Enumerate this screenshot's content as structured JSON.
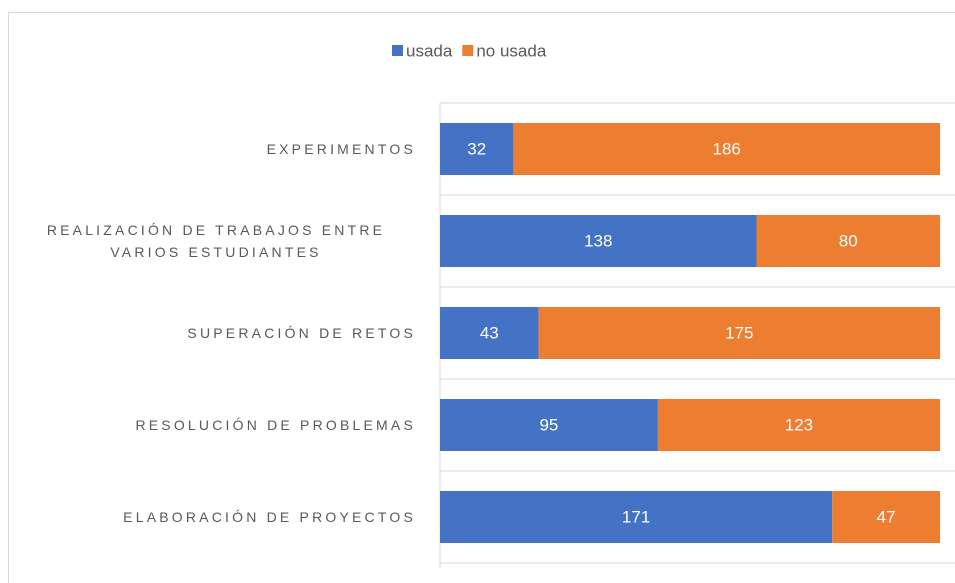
{
  "chart_data": {
    "type": "stacked-bar-horizontal",
    "categories": [
      "EXPERIMENTOS",
      "REALIZACIÓN DE TRABAJOS ENTRE VARIOS ESTUDIANTES",
      "SUPERACIÓN DE RETOS",
      "RESOLUCIÓN DE PROBLEMAS",
      "ELABORACIÓN DE PROYECTOS"
    ],
    "series": [
      {
        "name": "usada",
        "color": "#4472c4",
        "values": [
          32,
          138,
          43,
          95,
          171
        ]
      },
      {
        "name": "no usada",
        "color": "#ed7d31",
        "values": [
          186,
          80,
          175,
          123,
          47
        ]
      }
    ],
    "xlim": [
      0,
      218
    ],
    "legend": "top",
    "grid": true
  }
}
